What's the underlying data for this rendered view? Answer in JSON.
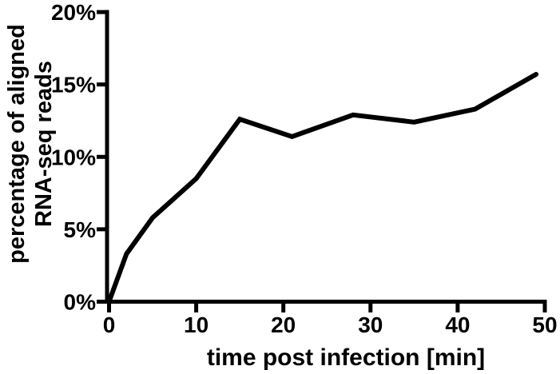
{
  "chart_data": {
    "type": "line",
    "title": "",
    "xlabel": "time post infection [min]",
    "ylabel": "percentage of aligned RNA-seq reads",
    "ylabel_lines": [
      "percentage of aligned",
      "RNA-seq reads"
    ],
    "x": [
      0,
      2,
      5,
      10,
      15,
      21,
      28,
      35,
      42,
      49
    ],
    "values": [
      0,
      3.3,
      5.8,
      8.5,
      12.6,
      11.4,
      12.9,
      12.4,
      13.3,
      15.7
    ],
    "series": [
      {
        "name": "aligned RNA-seq reads",
        "values": [
          0,
          3.3,
          5.8,
          8.5,
          12.6,
          11.4,
          12.9,
          12.4,
          13.3,
          15.7
        ]
      }
    ],
    "x_ticks": [
      0,
      10,
      20,
      30,
      40,
      50
    ],
    "x_tick_labels": [
      "0",
      "10",
      "20",
      "30",
      "40",
      "50"
    ],
    "y_ticks": [
      0,
      5,
      10,
      15,
      20
    ],
    "y_tick_labels": [
      "0%",
      "5%",
      "10%",
      "15%",
      "20%"
    ],
    "xlim": [
      0,
      50
    ],
    "ylim": [
      0,
      20
    ],
    "grid": false,
    "legend_position": "none",
    "line_color": "#000000",
    "axis_color": "#000000",
    "background_color": "#ffffff"
  }
}
